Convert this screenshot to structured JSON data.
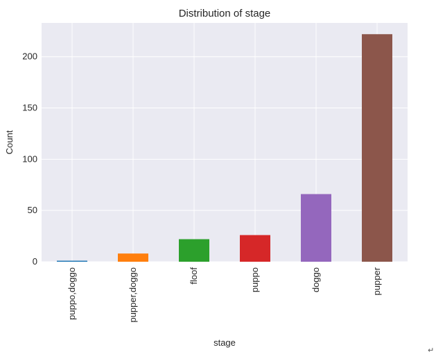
{
  "chart_data": {
    "type": "bar",
    "title": "Distribution of stage",
    "xlabel": "stage",
    "ylabel": "Count",
    "categories": [
      "puppo,doggo",
      "pupper,doggo",
      "floof",
      "puppo",
      "doggo",
      "pupper"
    ],
    "values": [
      1,
      8,
      22,
      26,
      66,
      222
    ],
    "colors": [
      "#1f77b4",
      "#ff7f0e",
      "#2ca02c",
      "#d62728",
      "#9467bd",
      "#8c564b"
    ],
    "ylim": [
      0,
      233
    ],
    "yticks": [
      0,
      50,
      100,
      150,
      200
    ],
    "grid": true,
    "legend": "none"
  },
  "corner_mark": "↵"
}
